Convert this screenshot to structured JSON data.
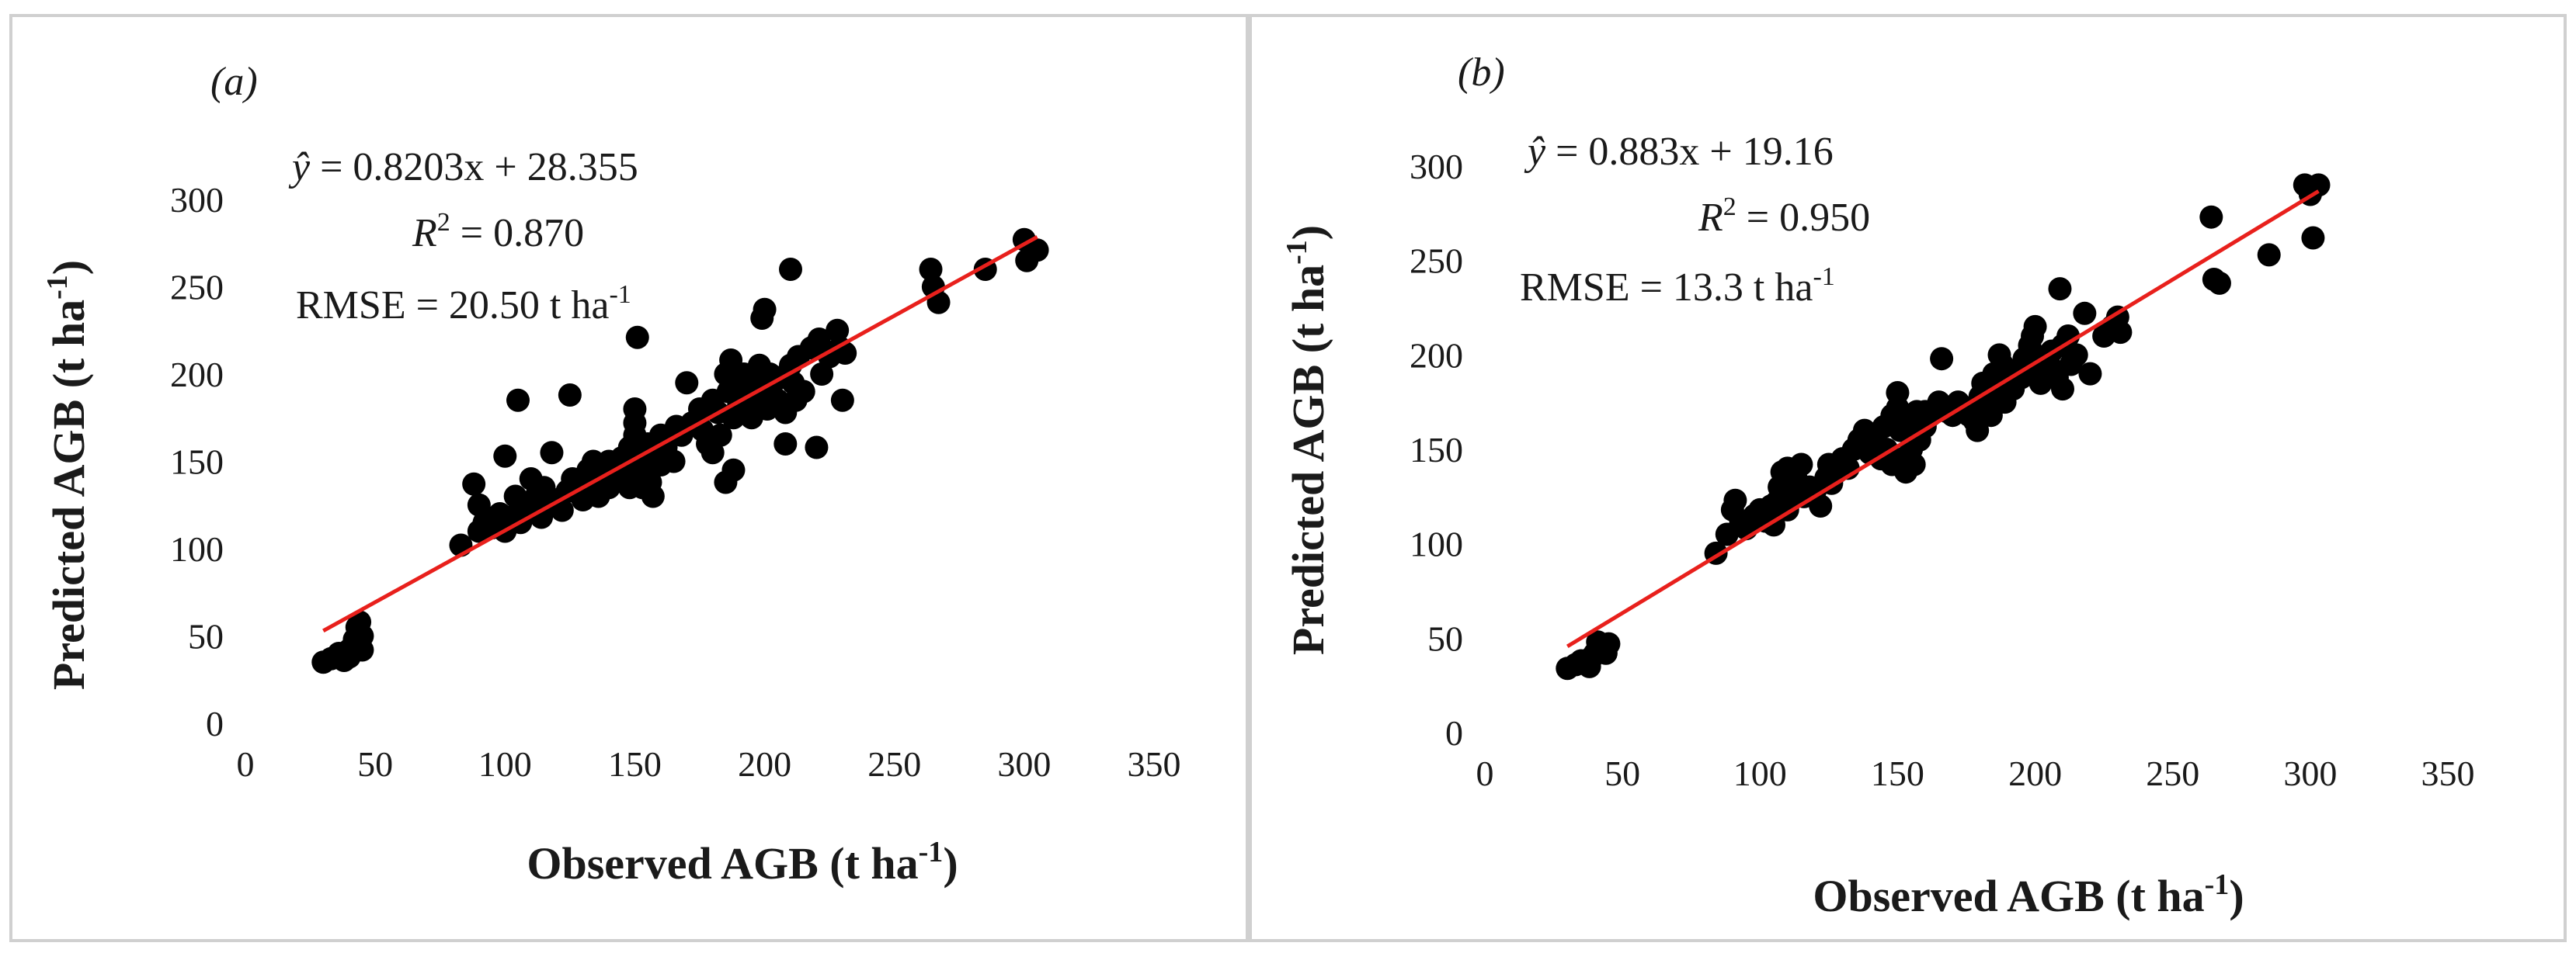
{
  "chart_data": [
    {
      "type": "scatter",
      "panel_label": "(a)",
      "equation_lhs": "ŷ",
      "equation_rhs": " = 0.8203x + 28.355",
      "r2_label": "R",
      "r2_sup": "2",
      "r2_value": " = 0.870",
      "rmse_text": "RMSE = 20.50 t ha",
      "rmse_sup": "-1",
      "xlabel": "Observed AGB (t ha",
      "xlabel_sup": "-1",
      "xlabel_close": ")",
      "ylabel": "Predicted AGB (t ha",
      "ylabel_sup": "-1",
      "ylabel_close": ")",
      "xlim": [
        0,
        350
      ],
      "ylim": [
        0,
        300
      ],
      "xticks": [
        0,
        50,
        100,
        150,
        200,
        250,
        300,
        350
      ],
      "yticks": [
        0,
        50,
        100,
        150,
        200,
        250,
        300
      ],
      "trendline": {
        "slope": 0.8203,
        "intercept": 28.355,
        "x_range": [
          30,
          305
        ],
        "color": "#e8201c"
      },
      "point_color": "#000000",
      "points": [
        [
          30,
          35
        ],
        [
          33,
          37
        ],
        [
          35,
          38
        ],
        [
          36,
          40
        ],
        [
          38,
          40
        ],
        [
          40,
          38
        ],
        [
          40,
          42
        ],
        [
          42,
          45
        ],
        [
          43,
          55
        ],
        [
          44,
          58
        ],
        [
          45,
          50
        ],
        [
          45,
          42
        ],
        [
          42,
          48
        ],
        [
          38,
          36
        ],
        [
          83,
          102
        ],
        [
          88,
          137
        ],
        [
          90,
          110
        ],
        [
          90,
          125
        ],
        [
          92,
          115
        ],
        [
          95,
          112
        ],
        [
          98,
          120
        ],
        [
          100,
          153
        ],
        [
          100,
          110
        ],
        [
          102,
          118
        ],
        [
          104,
          130
        ],
        [
          105,
          185
        ],
        [
          106,
          115
        ],
        [
          108,
          122
        ],
        [
          110,
          140
        ],
        [
          110,
          125
        ],
        [
          112,
          130
        ],
        [
          114,
          118
        ],
        [
          115,
          135
        ],
        [
          116,
          128
        ],
        [
          118,
          155
        ],
        [
          120,
          128
        ],
        [
          122,
          122
        ],
        [
          124,
          133
        ],
        [
          125,
          188
        ],
        [
          126,
          140
        ],
        [
          128,
          132
        ],
        [
          130,
          128
        ],
        [
          132,
          145
        ],
        [
          133,
          138
        ],
        [
          134,
          150
        ],
        [
          136,
          130
        ],
        [
          138,
          142
        ],
        [
          140,
          150
        ],
        [
          140,
          135
        ],
        [
          142,
          148
        ],
        [
          143,
          140
        ],
        [
          145,
          152
        ],
        [
          146,
          145
        ],
        [
          148,
          135
        ],
        [
          148,
          158
        ],
        [
          150,
          165
        ],
        [
          150,
          180
        ],
        [
          150,
          172
        ],
        [
          151,
          221
        ],
        [
          152,
          150
        ],
        [
          152,
          140
        ],
        [
          153,
          135
        ],
        [
          155,
          160
        ],
        [
          155,
          145
        ],
        [
          156,
          138
        ],
        [
          157,
          130
        ],
        [
          158,
          155
        ],
        [
          160,
          148
        ],
        [
          160,
          165
        ],
        [
          162,
          158
        ],
        [
          165,
          150
        ],
        [
          166,
          170
        ],
        [
          168,
          165
        ],
        [
          170,
          195
        ],
        [
          172,
          172
        ],
        [
          175,
          180
        ],
        [
          176,
          168
        ],
        [
          178,
          160
        ],
        [
          180,
          185
        ],
        [
          180,
          155
        ],
        [
          182,
          178
        ],
        [
          183,
          165
        ],
        [
          185,
          200
        ],
        [
          185,
          138
        ],
        [
          186,
          190
        ],
        [
          187,
          208
        ],
        [
          188,
          175
        ],
        [
          188,
          145
        ],
        [
          190,
          195
        ],
        [
          190,
          182
        ],
        [
          192,
          200
        ],
        [
          193,
          185
        ],
        [
          195,
          175
        ],
        [
          196,
          190
        ],
        [
          198,
          205
        ],
        [
          199,
          232
        ],
        [
          200,
          237
        ],
        [
          200,
          195
        ],
        [
          201,
          180
        ],
        [
          202,
          200
        ],
        [
          203,
          188
        ],
        [
          205,
          185
        ],
        [
          206,
          198
        ],
        [
          208,
          178
        ],
        [
          208,
          160
        ],
        [
          210,
          205
        ],
        [
          210,
          260
        ],
        [
          211,
          195
        ],
        [
          212,
          185
        ],
        [
          213,
          210
        ],
        [
          215,
          190
        ],
        [
          218,
          215
        ],
        [
          220,
          158
        ],
        [
          221,
          220
        ],
        [
          222,
          200
        ],
        [
          225,
          210
        ],
        [
          228,
          225
        ],
        [
          229,
          215
        ],
        [
          230,
          185
        ],
        [
          231,
          212
        ],
        [
          264,
          260
        ],
        [
          265,
          250
        ],
        [
          267,
          241
        ],
        [
          285,
          260
        ],
        [
          300,
          277
        ],
        [
          301,
          265
        ],
        [
          303,
          270
        ],
        [
          305,
          271
        ]
      ]
    },
    {
      "type": "scatter",
      "panel_label": "(b)",
      "equation_lhs": "ŷ",
      "equation_rhs": " = 0.883x + 19.16",
      "r2_label": "R",
      "r2_sup": "2",
      "r2_value": " = 0.950",
      "rmse_text": "RMSE = 13.3 t ha",
      "rmse_sup": "-1",
      "xlabel": "Observed AGB (t ha",
      "xlabel_sup": "-1",
      "xlabel_close": ")",
      "ylabel": "Predicted AGB (t ha",
      "ylabel_sup": "-1",
      "ylabel_close": ")",
      "xlim": [
        0,
        350
      ],
      "ylim": [
        0,
        300
      ],
      "xticks": [
        0,
        50,
        100,
        150,
        200,
        250,
        300,
        350
      ],
      "yticks": [
        0,
        50,
        100,
        150,
        200,
        250,
        300
      ],
      "trendline": {
        "slope": 0.883,
        "intercept": 19.16,
        "x_range": [
          30,
          303
        ],
        "color": "#e8201c"
      },
      "point_color": "#000000",
      "points": [
        [
          30,
          34
        ],
        [
          33,
          36
        ],
        [
          35,
          38
        ],
        [
          37,
          37
        ],
        [
          39,
          40
        ],
        [
          40,
          42
        ],
        [
          41,
          48
        ],
        [
          42,
          46
        ],
        [
          43,
          44
        ],
        [
          44,
          42
        ],
        [
          45,
          47
        ],
        [
          38,
          35
        ],
        [
          84,
          95
        ],
        [
          88,
          105
        ],
        [
          90,
          118
        ],
        [
          91,
          123
        ],
        [
          93,
          112
        ],
        [
          95,
          108
        ],
        [
          98,
          115
        ],
        [
          100,
          118
        ],
        [
          102,
          112
        ],
        [
          104,
          120
        ],
        [
          105,
          110
        ],
        [
          106,
          122
        ],
        [
          107,
          130
        ],
        [
          108,
          138
        ],
        [
          110,
          140
        ],
        [
          110,
          118
        ],
        [
          112,
          128
        ],
        [
          113,
          135
        ],
        [
          115,
          142
        ],
        [
          116,
          125
        ],
        [
          118,
          130
        ],
        [
          120,
          128
        ],
        [
          122,
          120
        ],
        [
          124,
          135
        ],
        [
          125,
          142
        ],
        [
          126,
          132
        ],
        [
          128,
          138
        ],
        [
          130,
          145
        ],
        [
          132,
          140
        ],
        [
          134,
          150
        ],
        [
          136,
          155
        ],
        [
          138,
          160
        ],
        [
          140,
          148
        ],
        [
          141,
          152
        ],
        [
          142,
          158
        ],
        [
          144,
          145
        ],
        [
          145,
          162
        ],
        [
          146,
          150
        ],
        [
          148,
          142
        ],
        [
          148,
          168
        ],
        [
          150,
          172
        ],
        [
          150,
          180
        ],
        [
          151,
          160
        ],
        [
          152,
          145
        ],
        [
          153,
          138
        ],
        [
          154,
          165
        ],
        [
          155,
          150
        ],
        [
          156,
          142
        ],
        [
          157,
          170
        ],
        [
          158,
          155
        ],
        [
          160,
          162
        ],
        [
          160,
          170
        ],
        [
          162,
          168
        ],
        [
          164,
          172
        ],
        [
          165,
          175
        ],
        [
          166,
          198
        ],
        [
          168,
          170
        ],
        [
          170,
          168
        ],
        [
          172,
          175
        ],
        [
          175,
          172
        ],
        [
          176,
          168
        ],
        [
          178,
          165
        ],
        [
          179,
          160
        ],
        [
          180,
          178
        ],
        [
          181,
          185
        ],
        [
          182,
          172
        ],
        [
          184,
          168
        ],
        [
          185,
          190
        ],
        [
          186,
          180
        ],
        [
          187,
          200
        ],
        [
          188,
          195
        ],
        [
          189,
          175
        ],
        [
          190,
          185
        ],
        [
          192,
          182
        ],
        [
          194,
          192
        ],
        [
          195,
          188
        ],
        [
          196,
          198
        ],
        [
          198,
          205
        ],
        [
          199,
          210
        ],
        [
          200,
          215
        ],
        [
          200,
          200
        ],
        [
          201,
          192
        ],
        [
          202,
          185
        ],
        [
          203,
          198
        ],
        [
          205,
          195
        ],
        [
          206,
          202
        ],
        [
          208,
          188
        ],
        [
          209,
          235
        ],
        [
          210,
          205
        ],
        [
          210,
          182
        ],
        [
          212,
          210
        ],
        [
          213,
          195
        ],
        [
          215,
          200
        ],
        [
          218,
          222
        ],
        [
          220,
          190
        ],
        [
          225,
          210
        ],
        [
          228,
          215
        ],
        [
          230,
          220
        ],
        [
          231,
          212
        ],
        [
          264,
          273
        ],
        [
          265,
          240
        ],
        [
          267,
          238
        ],
        [
          285,
          253
        ],
        [
          298,
          290
        ],
        [
          300,
          285
        ],
        [
          301,
          262
        ],
        [
          303,
          290
        ]
      ]
    }
  ]
}
